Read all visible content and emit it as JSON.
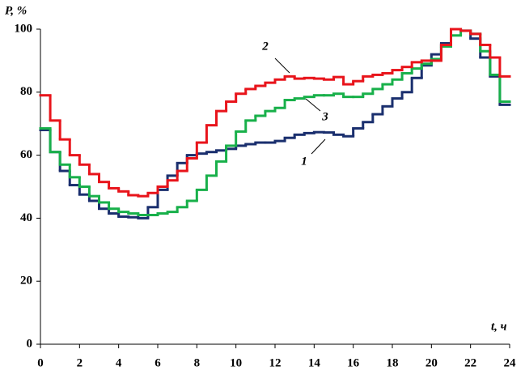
{
  "chart_data": {
    "type": "step",
    "y_label": "P, %",
    "x_label": "t, ч",
    "x": [
      0,
      0.5,
      1,
      1.5,
      2,
      2.5,
      3,
      3.5,
      4,
      4.5,
      5,
      5.5,
      6,
      6.5,
      7,
      7.5,
      8,
      8.5,
      9,
      9.5,
      10,
      10.5,
      11,
      11.5,
      12,
      12.5,
      13,
      13.5,
      14,
      14.5,
      15,
      15.5,
      16,
      16.5,
      17,
      17.5,
      18,
      18.5,
      19,
      19.5,
      20,
      20.5,
      21,
      21.5,
      22,
      22.5,
      23,
      23.5
    ],
    "series": [
      {
        "name": "1",
        "color": "#1a2f6e",
        "values": [
          68,
          61,
          55,
          50.5,
          47.5,
          45.5,
          43,
          41.5,
          40.5,
          40.3,
          40,
          43.5,
          49,
          53.5,
          57.5,
          60,
          60.5,
          61,
          61.5,
          62,
          63,
          63.5,
          64,
          64,
          64.5,
          65.5,
          66.5,
          67,
          67.3,
          67.2,
          66.5,
          66,
          68.5,
          70.5,
          73,
          75.5,
          78,
          80,
          84.5,
          88.5,
          92,
          95.5,
          100,
          99.5,
          97,
          91,
          85,
          76
        ]
      },
      {
        "name": "3",
        "color": "#18b04a",
        "values": [
          68.5,
          61,
          57,
          53,
          50,
          47,
          45,
          43,
          42,
          41.5,
          41,
          41,
          41.5,
          42,
          43.5,
          45.5,
          49,
          53.5,
          58,
          63,
          67.5,
          71,
          72.5,
          74,
          75,
          77.5,
          78,
          78.5,
          79,
          79,
          79.5,
          78.5,
          78.5,
          79.5,
          81,
          82.5,
          84,
          86,
          87.5,
          89,
          90.5,
          94.5,
          98,
          99.5,
          98.5,
          93,
          85.5,
          77
        ]
      },
      {
        "name": "2",
        "color": "#e8141b",
        "values": [
          79,
          71,
          65,
          60,
          57,
          54,
          51.5,
          49.5,
          48.5,
          47.3,
          47,
          48,
          50,
          52,
          55,
          59,
          64,
          69.5,
          74,
          77,
          79.5,
          81,
          82,
          83,
          84,
          85,
          84.3,
          84.5,
          84.3,
          84,
          84.8,
          82.5,
          83.5,
          85,
          85.5,
          86,
          87,
          88,
          89.5,
          90,
          90,
          95,
          100,
          99.5,
          98.5,
          95,
          91,
          85
        ]
      }
    ],
    "xlim": [
      0,
      24
    ],
    "xticks": [
      0,
      2,
      4,
      6,
      8,
      10,
      12,
      14,
      16,
      18,
      20,
      22,
      24
    ],
    "ylim": [
      0,
      100
    ],
    "yticks": [
      0,
      20,
      40,
      60,
      80,
      100
    ]
  }
}
